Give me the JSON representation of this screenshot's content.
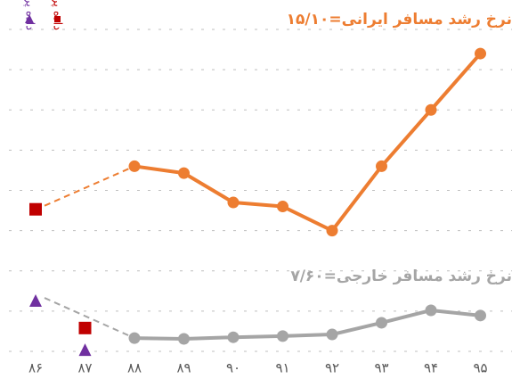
{
  "chart_data": {
    "type": "line",
    "annotations": [
      {
        "text": "نرخ رشد مسافر ایرانی=۱۵/۱۰",
        "color": "#ED7D31"
      },
      {
        "text": "نرخ رشد مسافر خارجی=۷/۶۰",
        "color": "#A5A5A5"
      }
    ],
    "categories": [
      "۸۶",
      "۸۷",
      "۸۸",
      "۸۹",
      "۹۰",
      "۹۱",
      "۹۲",
      "۹۳",
      "۹۴",
      "۹۵"
    ],
    "series": [
      {
        "type": "line",
        "color": "#ED7D31",
        "values": [
          null,
          null,
          4.6,
          4.43,
          3.7,
          3.6,
          3.0,
          4.6,
          6.0,
          7.4
        ]
      },
      {
        "type": "line",
        "color": "#A5A5A5",
        "values": [
          null,
          null,
          0.33,
          0.31,
          0.35,
          0.38,
          0.42,
          0.71,
          1.02,
          0.89
        ]
      },
      {
        "type": "scatter",
        "marker": "square",
        "name": "داده پرت مسافر ایرانی",
        "color": "#C00000",
        "values": [
          3.53,
          0.58,
          null,
          null,
          null,
          null,
          null,
          null,
          null,
          null
        ]
      },
      {
        "type": "scatter",
        "marker": "triangle",
        "name": "داده پرت مسافر خارجی",
        "color": "#7030A0",
        "values": [
          1.24,
          0.02,
          null,
          null,
          null,
          null,
          null,
          null,
          null,
          null
        ]
      }
    ],
    "ylim": [
      0,
      8
    ],
    "yticks": [
      0,
      1,
      2,
      3,
      4,
      5,
      6,
      7,
      8
    ],
    "grid": true
  }
}
